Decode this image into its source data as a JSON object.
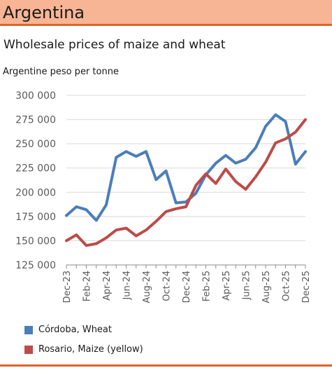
{
  "header": {
    "country": "Argentina"
  },
  "subtitle": "Wholesale prices of maize and wheat",
  "unit_label": "Argentine peso per tonne",
  "colors": {
    "banner_bg": "#f8b595",
    "banner_rule": "#e2622a",
    "wheat": "#4a7ebb",
    "maize": "#be4b48"
  },
  "chart_data": {
    "type": "line",
    "title": "",
    "xlabel": "",
    "ylabel": "Argentine peso per tonne",
    "ylim": [
      125000,
      300000
    ],
    "yticks": [
      125000,
      150000,
      175000,
      200000,
      225000,
      250000,
      275000,
      300000
    ],
    "ytick_labels": [
      "125 000",
      "150 000",
      "175 000",
      "200 000",
      "225 000",
      "250 000",
      "275 000",
      "300 000"
    ],
    "x": [
      "Dec-23",
      "Jan-24",
      "Feb-24",
      "Mar-24",
      "Apr-24",
      "May-24",
      "Jun-24",
      "Jul-24",
      "Aug-24",
      "Sep-24",
      "Oct-24",
      "Nov-24",
      "Dec-24",
      "Jan-25",
      "Feb-25",
      "Mar-25",
      "Apr-25",
      "May-25",
      "Jun-25",
      "Jul-25",
      "Aug-25",
      "Sep-25",
      "Oct-25",
      "Nov-25",
      "Dec-25"
    ],
    "xtick_labels": [
      "Dec-23",
      "Feb-24",
      "Apr-24",
      "Jun-24",
      "Aug-24",
      "Oct-24",
      "Dec-24",
      "Feb-25",
      "Apr-25",
      "Jun-25",
      "Aug-25",
      "Oct-25",
      "Dec-25"
    ],
    "grid": "horizontal",
    "legend_position": "bottom",
    "series": [
      {
        "name": "Córdoba, Wheat",
        "color": "#4a7ebb",
        "values": [
          176000,
          185000,
          182000,
          171000,
          187000,
          236000,
          242000,
          237000,
          242000,
          213000,
          222000,
          189000,
          190000,
          199000,
          218000,
          230000,
          238000,
          230000,
          234000,
          246000,
          268000,
          280000,
          273000,
          229000,
          242000
        ]
      },
      {
        "name": "Rosario, Maize (yellow)",
        "color": "#be4b48",
        "values": [
          150000,
          156000,
          145000,
          147000,
          153000,
          161000,
          163000,
          155000,
          161000,
          170000,
          180000,
          183000,
          185000,
          207000,
          219000,
          209000,
          224000,
          211000,
          203000,
          216000,
          231000,
          251000,
          255000,
          262000,
          275000
        ]
      }
    ]
  }
}
